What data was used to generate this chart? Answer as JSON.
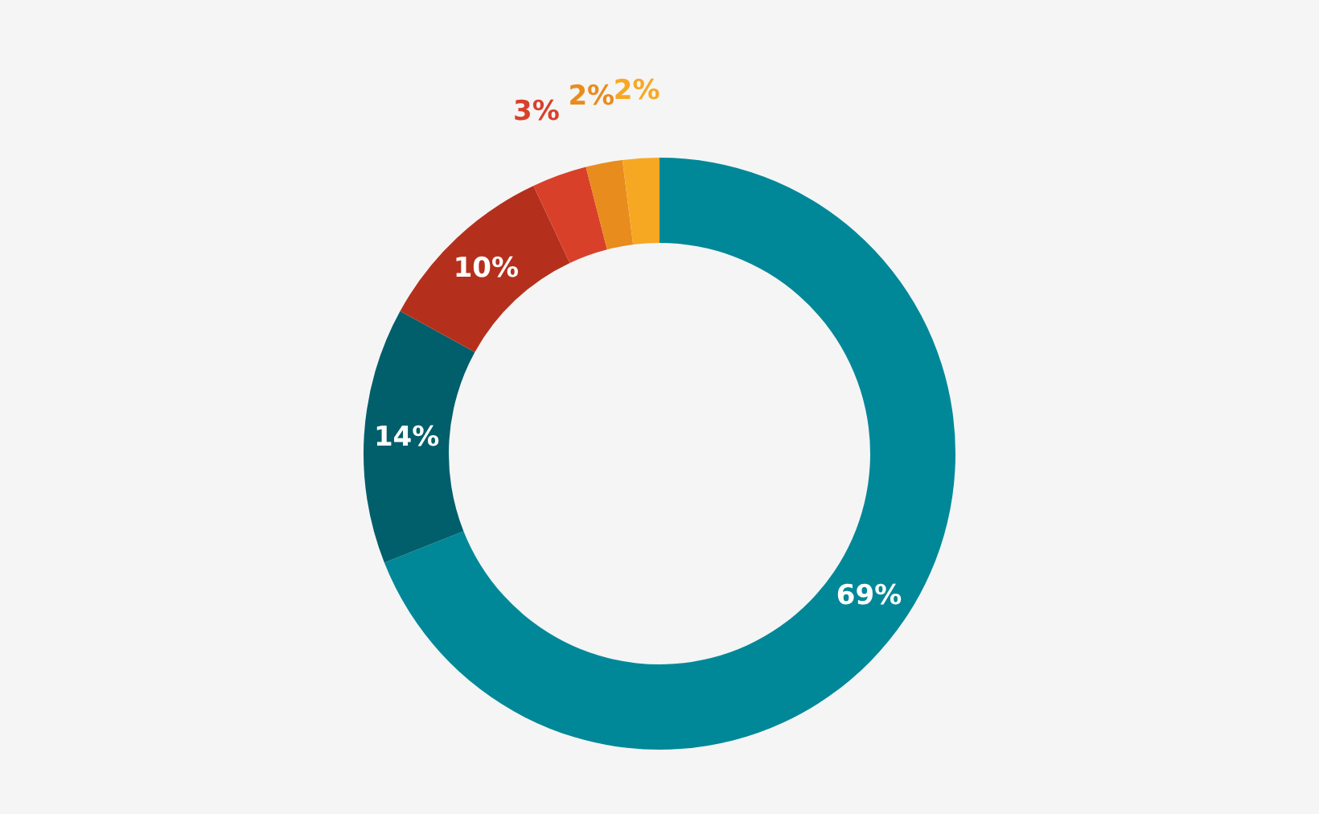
{
  "chart_data": {
    "type": "donut",
    "categories": [
      null,
      null,
      null,
      null,
      null,
      null
    ],
    "values": [
      69,
      14,
      10,
      3,
      2,
      2
    ],
    "colors": [
      "#008898",
      "#005f6b",
      "#b5301c",
      "#d9402a",
      "#e88c1e",
      "#f7a823"
    ],
    "value_labels": [
      "69%",
      "14%",
      "10%",
      "3%",
      "2%",
      "2%"
    ]
  }
}
